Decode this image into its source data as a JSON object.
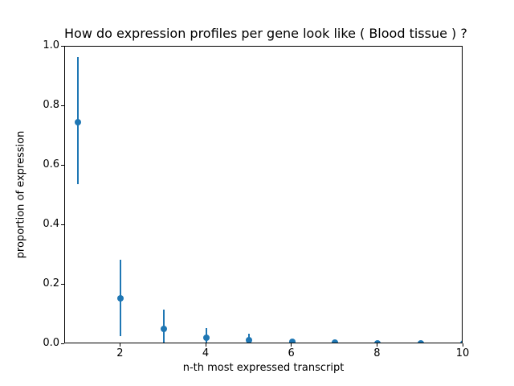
{
  "chart_data": {
    "type": "scatter",
    "style": "points-with-error-bars",
    "title": "How do expression profiles per gene look like ( Blood tissue ) ?",
    "xlabel": "n-th most expressed transcript",
    "ylabel": "proportion of expression",
    "x": [
      1,
      2,
      3,
      4,
      5,
      6,
      7,
      8,
      9,
      10
    ],
    "y": [
      0.745,
      0.155,
      0.052,
      0.022,
      0.013,
      0.008,
      0.006,
      0.004,
      0.003,
      0.002
    ],
    "err_low": [
      0.538,
      0.026,
      0.0,
      0.0,
      0.0,
      0.0,
      0.0,
      0.0,
      0.0,
      0.0
    ],
    "err_high": [
      0.965,
      0.285,
      0.117,
      0.055,
      0.036,
      0.014,
      0.01,
      0.007,
      0.005,
      0.003
    ],
    "xlim": [
      0.7,
      10.0
    ],
    "ylim": [
      0.0,
      1.0
    ],
    "xticks": [
      2,
      4,
      6,
      8,
      10
    ],
    "xtick_labels": [
      "2",
      "4",
      "6",
      "8",
      "10"
    ],
    "yticks": [
      0.0,
      0.2,
      0.4,
      0.6,
      0.8,
      1.0
    ],
    "ytick_labels": [
      "0.0",
      "0.2",
      "0.4",
      "0.6",
      "0.8",
      "1.0"
    ],
    "grid": false,
    "legend": null,
    "marker_color": "#1f77b4",
    "axis_color": "#000000",
    "text_color": "#000000",
    "background": "#ffffff"
  }
}
